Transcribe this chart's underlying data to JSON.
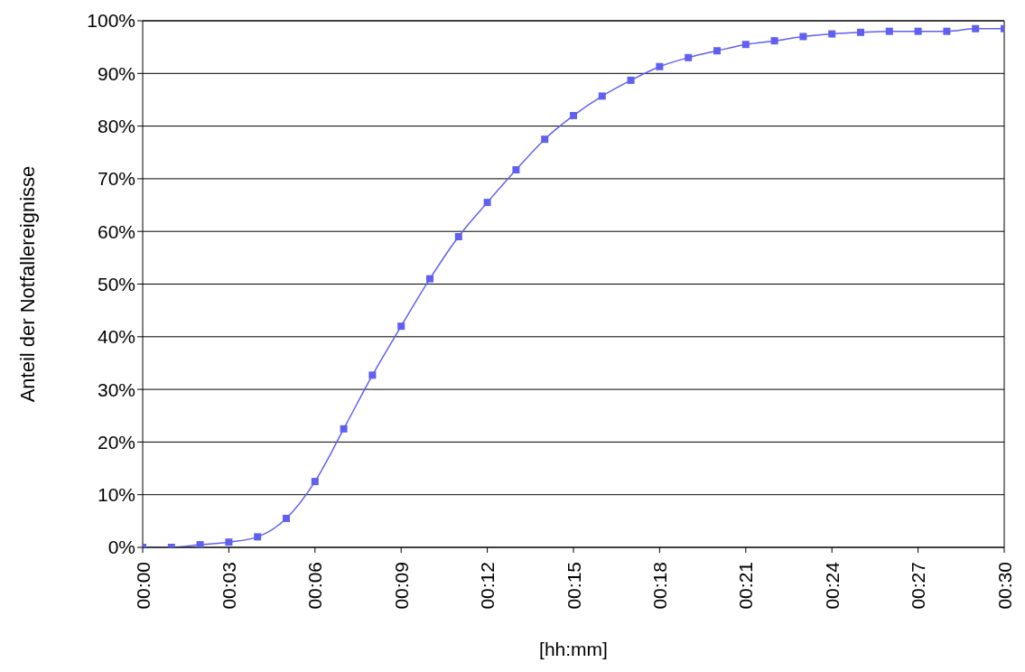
{
  "chart_data": {
    "type": "line",
    "xlabel": "[hh:mm]",
    "ylabel": "Anteil der Notfallereignisse",
    "x": [
      0,
      0.016667,
      0.033333,
      0.05,
      0.066667,
      0.083333,
      0.1,
      0.116667,
      0.133333,
      0.15,
      0.166667,
      0.183333,
      0.2,
      0.216667,
      0.233333,
      0.25,
      0.266667,
      0.283333,
      0.3,
      0.316667,
      0.333333,
      0.35,
      0.366667,
      0.383333,
      0.4,
      0.416667,
      0.433333,
      0.45,
      0.466667,
      0.483333,
      0.5
    ],
    "series": [
      {
        "color": "#6060f0",
        "values": [
          0,
          0,
          0.5,
          1,
          2,
          5.5,
          12.5,
          22.5,
          32.7,
          42,
          51,
          59,
          65.5,
          71.7,
          77.5,
          82,
          85.7,
          88.7,
          91.3,
          93,
          94.3,
          95.5,
          96.2,
          97,
          97.5,
          97.8,
          98,
          98,
          98,
          98.5,
          98.5
        ]
      }
    ],
    "xlim": [
      0,
      0.5
    ],
    "xticks": [
      {
        "value": 0,
        "label": "00:00"
      },
      {
        "value": 0.05,
        "label": "00:03"
      },
      {
        "value": 0.1,
        "label": "00:06"
      },
      {
        "value": 0.15,
        "label": "00:09"
      },
      {
        "value": 0.2,
        "label": "00:12"
      },
      {
        "value": 0.25,
        "label": "00:15"
      },
      {
        "value": 0.3,
        "label": "00:18"
      },
      {
        "value": 0.35,
        "label": "00:21"
      },
      {
        "value": 0.4,
        "label": "00:24"
      },
      {
        "value": 0.45,
        "label": "00:27"
      },
      {
        "value": 0.5,
        "label": "00:30"
      }
    ],
    "ylim": [
      0,
      100
    ],
    "yticks": [
      {
        "value": 0,
        "label": "0%"
      },
      {
        "value": 10,
        "label": "10%"
      },
      {
        "value": 20,
        "label": "20%"
      },
      {
        "value": 30,
        "label": "30%"
      },
      {
        "value": 40,
        "label": "40%"
      },
      {
        "value": 50,
        "label": "50%"
      },
      {
        "value": 60,
        "label": "60%"
      },
      {
        "value": 70,
        "label": "70%"
      },
      {
        "value": 80,
        "label": "80%"
      },
      {
        "value": 90,
        "label": "90%"
      },
      {
        "value": 100,
        "label": "100%"
      }
    ],
    "grid": "y",
    "marker": "square",
    "line_style": "solid"
  }
}
